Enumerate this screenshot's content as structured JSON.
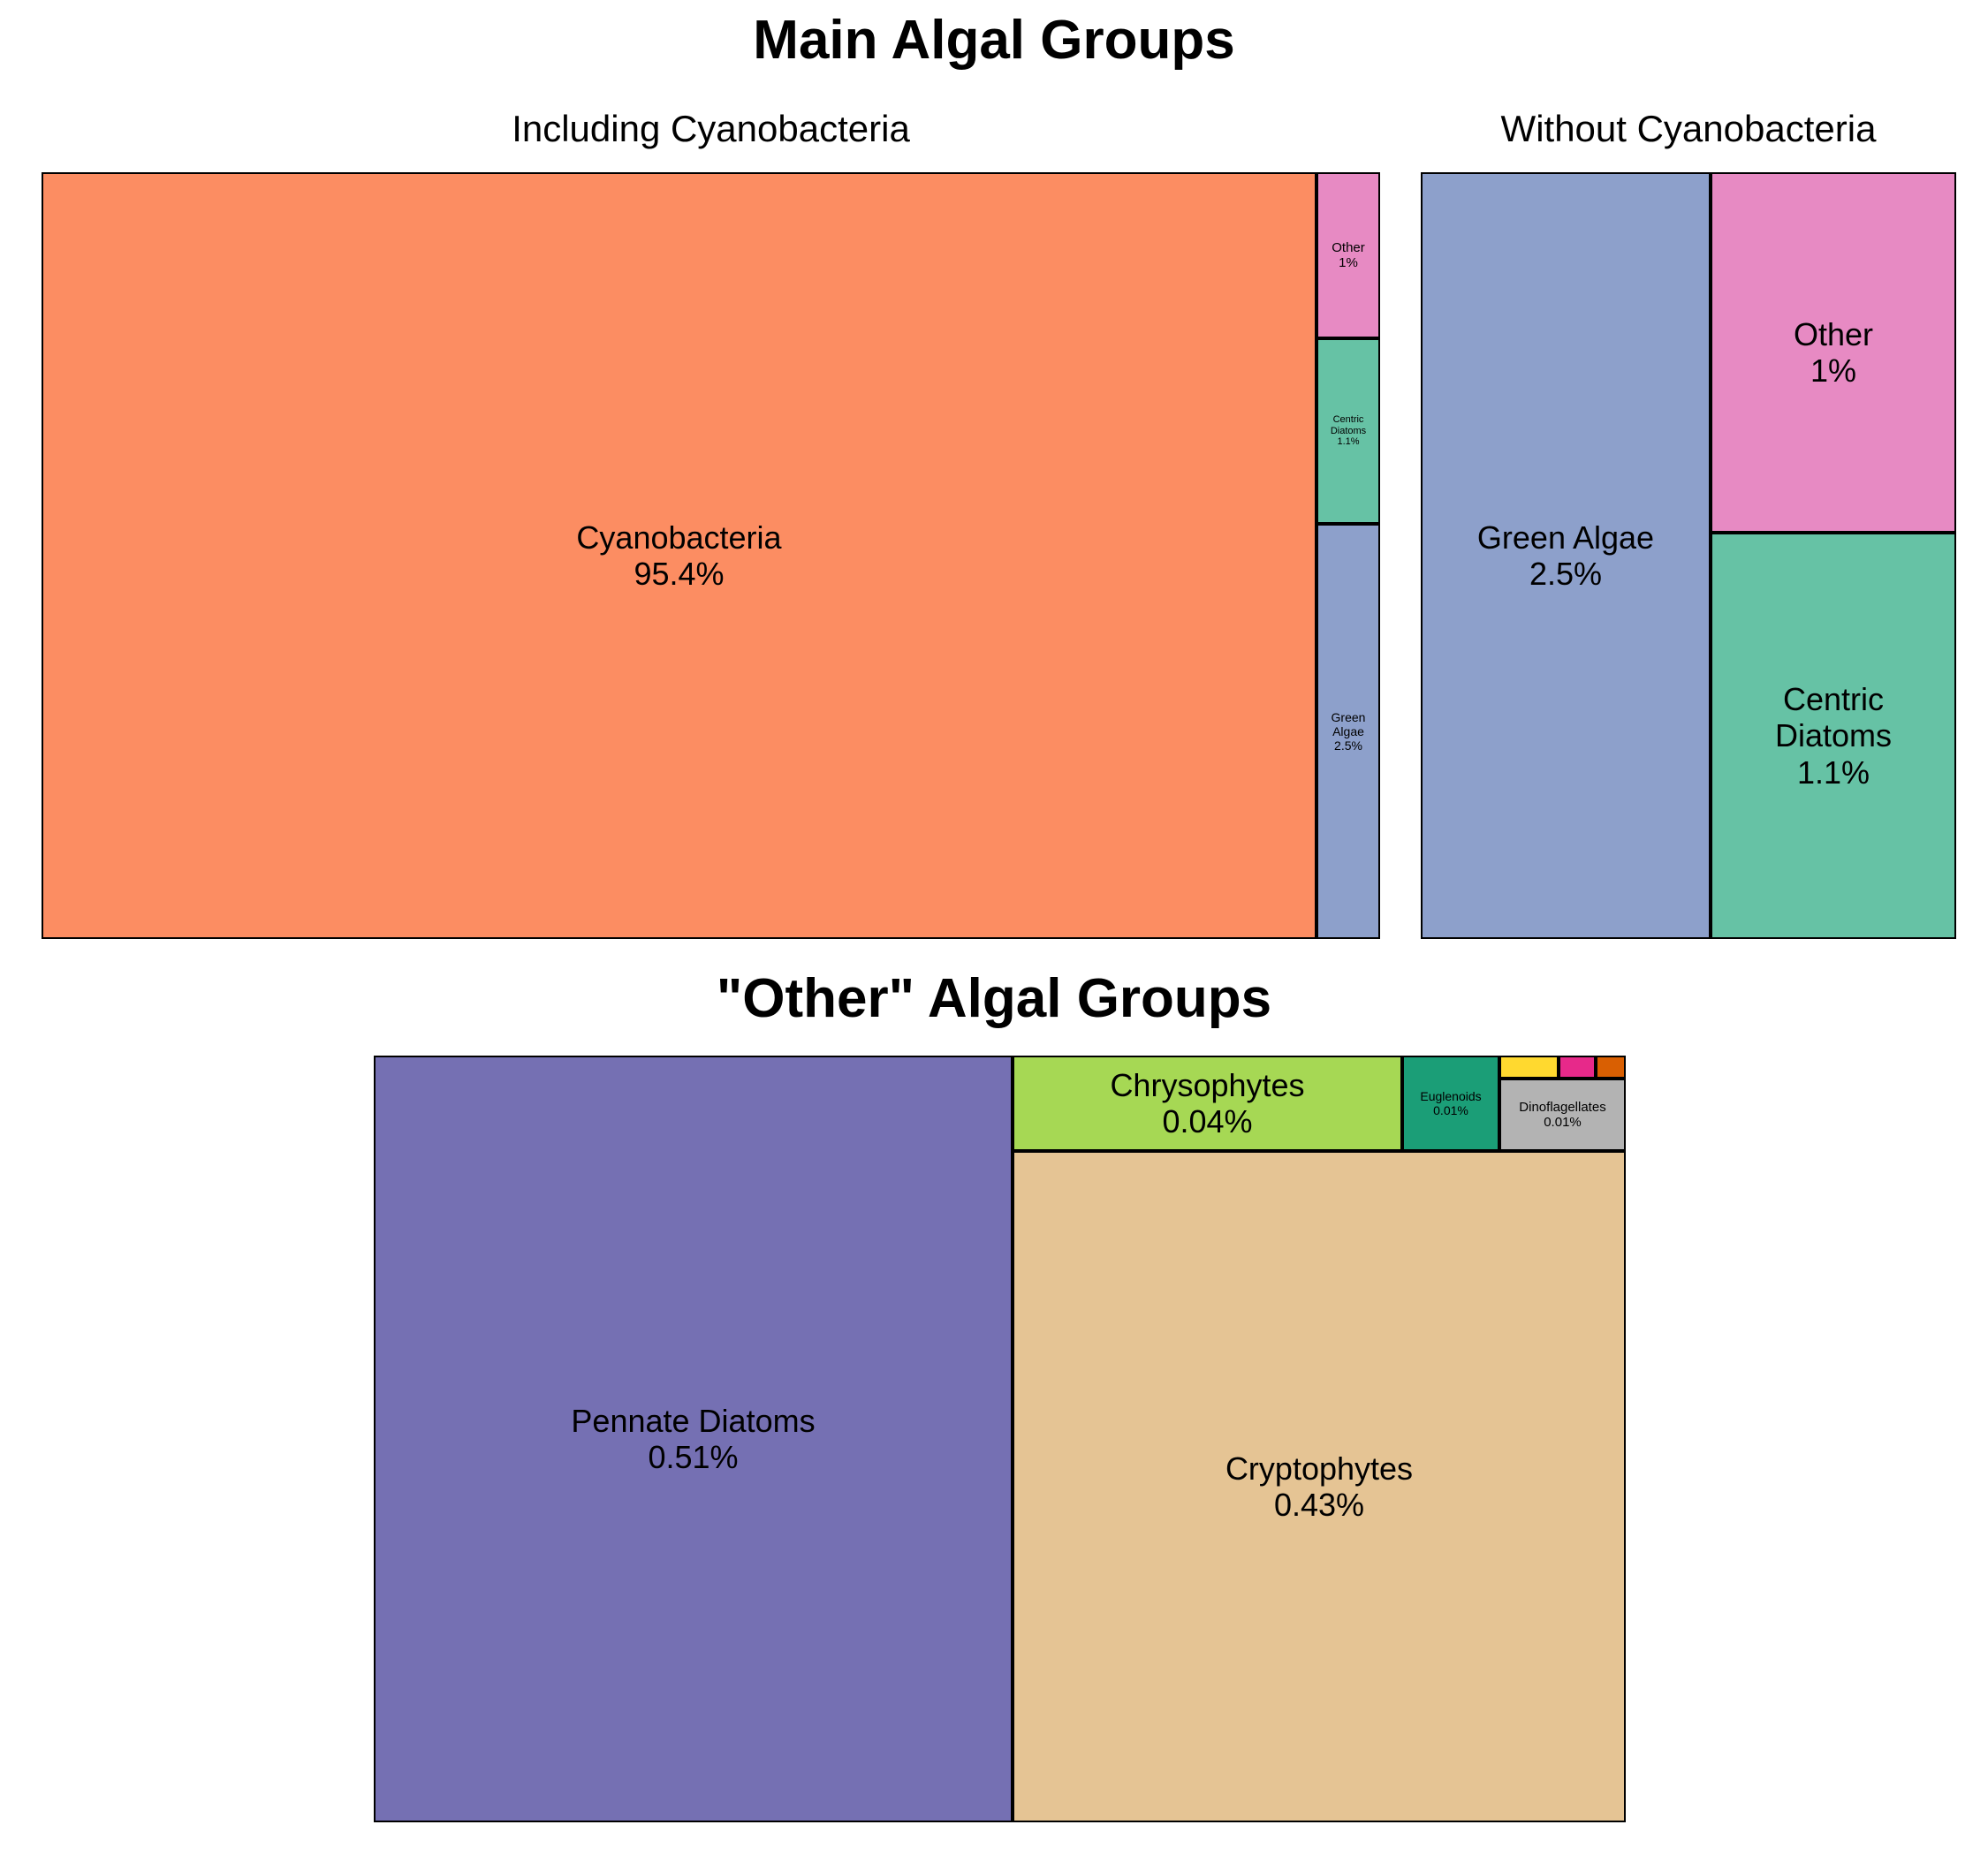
{
  "main_title": "Main Algal Groups",
  "other_title": "\"Other\" Algal Groups",
  "chart_data": [
    {
      "type": "treemap",
      "title": "Including Cyanobacteria",
      "items": [
        {
          "name": "Cyanobacteria",
          "label": "Cyanobacteria\n95.4%",
          "value": 95.4,
          "color": "#fc8d62"
        },
        {
          "name": "Other",
          "label": "Other\n1%",
          "value": 1.0,
          "color": "#e78ac3"
        },
        {
          "name": "Centric Diatoms",
          "label": "Centric\nDiatoms\n1.1%",
          "value": 1.1,
          "color": "#66c2a5"
        },
        {
          "name": "Green Algae",
          "label": "Green\nAlgae\n2.5%",
          "value": 2.5,
          "color": "#8da0cb"
        }
      ]
    },
    {
      "type": "treemap",
      "title": "Without Cyanobacteria",
      "items": [
        {
          "name": "Green Algae",
          "label": "Green Algae\n2.5%",
          "value": 2.5,
          "color": "#8da0cb"
        },
        {
          "name": "Other",
          "label": "Other\n1%",
          "value": 1.0,
          "color": "#e78ac3"
        },
        {
          "name": "Centric Diatoms",
          "label": "Centric\nDiatoms\n1.1%",
          "value": 1.1,
          "color": "#66c2a5"
        }
      ]
    },
    {
      "type": "treemap",
      "title": "\"Other\" Algal Groups",
      "items": [
        {
          "name": "Pennate Diatoms",
          "label": "Pennate Diatoms\n0.51%",
          "value": 0.51,
          "color": "#7570b3"
        },
        {
          "name": "Chrysophytes",
          "label": "Chrysophytes\n0.04%",
          "value": 0.04,
          "color": "#a6d854"
        },
        {
          "name": "Euglenoids",
          "label": "Euglenoids\n0.01%",
          "value": 0.01,
          "color": "#1b9e77"
        },
        {
          "name": "small-group-yellow",
          "label": "",
          "value": 0.002,
          "color": "#ffd92f"
        },
        {
          "name": "small-group-magenta",
          "label": "",
          "value": 0.001,
          "color": "#e7298a"
        },
        {
          "name": "small-group-orange",
          "label": "",
          "value": 0.001,
          "color": "#d95f02"
        },
        {
          "name": "Dinoflagellates",
          "label": "Dinoflagellates\n0.01%",
          "value": 0.01,
          "color": "#b3b3b3"
        },
        {
          "name": "Cryptophytes",
          "label": "Cryptophytes\n0.43%",
          "value": 0.43,
          "color": "#e5c494"
        }
      ]
    }
  ]
}
